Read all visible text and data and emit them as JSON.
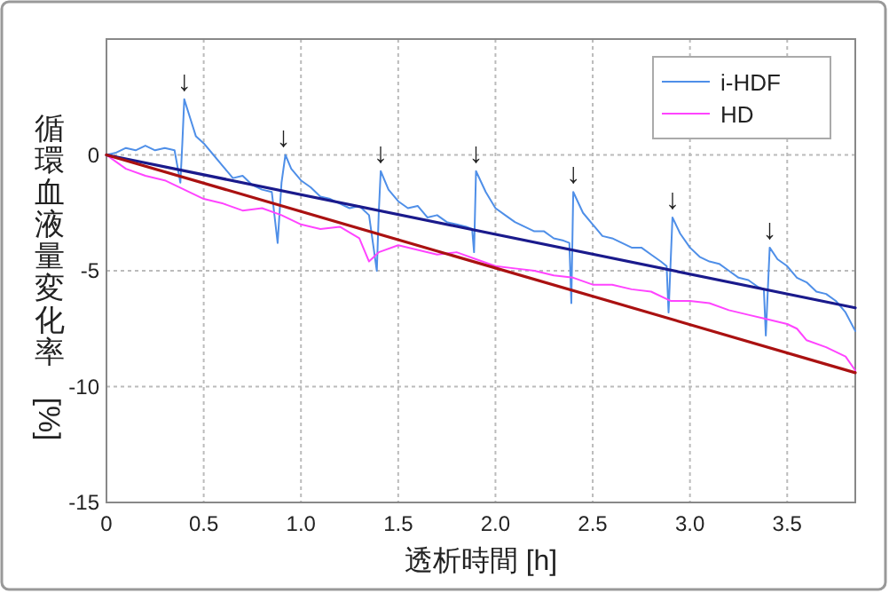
{
  "chart_data": {
    "type": "line",
    "xlabel": "透析時間 [h]",
    "ylabel": "循環血液量変化率 [%]",
    "xlim": [
      0,
      3.85
    ],
    "ylim": [
      -15,
      5
    ],
    "xticks": [
      0,
      {
        "value": 0.5,
        "label": "0.5"
      },
      {
        "value": 1,
        "label": "1.0"
      },
      {
        "value": 1.5,
        "label": "1.5"
      },
      {
        "value": 2,
        "label": "2.0"
      },
      {
        "value": 2.5,
        "label": "2.5"
      },
      {
        "value": 3,
        "label": "3.0"
      },
      {
        "value": 3.5,
        "label": "3.5"
      }
    ],
    "yticks": [
      -15,
      -10,
      -5,
      0
    ],
    "grid": true,
    "legend": "top right",
    "line_style": "solid",
    "marker": "none",
    "series": [
      {
        "name": "i-HDF",
        "color": "#4f8fe8",
        "x": [
          0,
          0.05,
          0.1,
          0.15,
          0.2,
          0.25,
          0.3,
          0.35,
          0.38,
          0.39,
          0.4,
          0.43,
          0.46,
          0.5,
          0.55,
          0.6,
          0.65,
          0.7,
          0.75,
          0.8,
          0.85,
          0.88,
          0.9,
          0.92,
          0.95,
          1.0,
          1.05,
          1.1,
          1.15,
          1.2,
          1.25,
          1.3,
          1.35,
          1.39,
          1.4,
          1.41,
          1.45,
          1.5,
          1.55,
          1.6,
          1.65,
          1.7,
          1.75,
          1.8,
          1.85,
          1.88,
          1.89,
          1.9,
          1.95,
          2.0,
          2.05,
          2.1,
          2.15,
          2.2,
          2.25,
          2.3,
          2.35,
          2.38,
          2.39,
          2.4,
          2.45,
          2.5,
          2.55,
          2.6,
          2.65,
          2.7,
          2.75,
          2.8,
          2.85,
          2.88,
          2.89,
          2.91,
          2.95,
          3.0,
          3.05,
          3.1,
          3.15,
          3.2,
          3.25,
          3.3,
          3.35,
          3.38,
          3.39,
          3.41,
          3.45,
          3.5,
          3.55,
          3.6,
          3.65,
          3.7,
          3.75,
          3.8,
          3.85
        ],
        "values": [
          0,
          0.1,
          0.3,
          0.2,
          0.4,
          0.2,
          0.3,
          0.2,
          -1.2,
          0.5,
          2.4,
          1.6,
          0.8,
          0.5,
          0,
          -0.5,
          -1,
          -0.9,
          -1.3,
          -1.5,
          -1.6,
          -3.8,
          -1.2,
          0,
          -0.6,
          -1.1,
          -1.4,
          -1.8,
          -1.9,
          -2.1,
          -2.3,
          -2.2,
          -2.6,
          -5,
          -2.5,
          -0.7,
          -1.5,
          -2,
          -2.3,
          -2.2,
          -2.7,
          -2.6,
          -2.9,
          -3,
          -3.1,
          -3.2,
          -4.2,
          -0.7,
          -1.6,
          -2.3,
          -2.6,
          -2.9,
          -3.1,
          -3.3,
          -3.3,
          -3.6,
          -3.7,
          -3.8,
          -6.4,
          -1.6,
          -2.5,
          -3,
          -3.5,
          -3.6,
          -3.8,
          -4,
          -4,
          -4.3,
          -4.6,
          -4.8,
          -6.8,
          -2.7,
          -3.4,
          -4,
          -4.4,
          -4.6,
          -4.7,
          -5,
          -5.3,
          -5.4,
          -5.7,
          -5.8,
          -7.8,
          -4,
          -4.5,
          -4.8,
          -5.3,
          -5.5,
          -5.9,
          -6,
          -6.3,
          -6.8,
          -7.6
        ]
      },
      {
        "name": "HD",
        "color": "#ff44ff",
        "x": [
          0,
          0.05,
          0.1,
          0.2,
          0.3,
          0.4,
          0.5,
          0.6,
          0.7,
          0.8,
          0.9,
          1.0,
          1.1,
          1.2,
          1.3,
          1.35,
          1.4,
          1.5,
          1.6,
          1.7,
          1.8,
          1.9,
          2.0,
          2.1,
          2.2,
          2.3,
          2.4,
          2.5,
          2.6,
          2.7,
          2.8,
          2.9,
          3.0,
          3.1,
          3.2,
          3.3,
          3.4,
          3.5,
          3.55,
          3.6,
          3.7,
          3.8,
          3.85
        ],
        "values": [
          0,
          -0.3,
          -0.6,
          -0.9,
          -1.1,
          -1.5,
          -1.9,
          -2.1,
          -2.4,
          -2.3,
          -2.6,
          -3,
          -3.2,
          -3.1,
          -3.6,
          -4.6,
          -4.2,
          -3.9,
          -4.1,
          -4.3,
          -4.2,
          -4.5,
          -4.8,
          -4.9,
          -5,
          -5.2,
          -5.3,
          -5.6,
          -5.6,
          -5.8,
          -5.9,
          -6.3,
          -6.3,
          -6.4,
          -6.7,
          -6.9,
          -7.1,
          -7.3,
          -7.5,
          -8,
          -8.3,
          -8.7,
          -9.3
        ]
      },
      {
        "color": "#1a1a8c",
        "x": [
          0,
          3.85
        ],
        "values": [
          0,
          -6.6
        ]
      },
      {
        "color": "#aa1111",
        "x": [
          0,
          3.85
        ],
        "values": [
          0,
          -9.4
        ]
      }
    ],
    "annotations": [
      {
        "text": "↓",
        "x": 0.4,
        "y": 2.4
      },
      {
        "text": "↓",
        "x": 0.91,
        "y": 0
      },
      {
        "text": "↓",
        "x": 1.41,
        "y": -0.7
      },
      {
        "text": "↓",
        "x": 1.9,
        "y": -0.7
      },
      {
        "text": "↓",
        "x": 2.4,
        "y": -1.6
      },
      {
        "text": "↓",
        "x": 2.91,
        "y": -2.7
      },
      {
        "text": "↓",
        "x": 3.41,
        "y": -4
      }
    ]
  }
}
